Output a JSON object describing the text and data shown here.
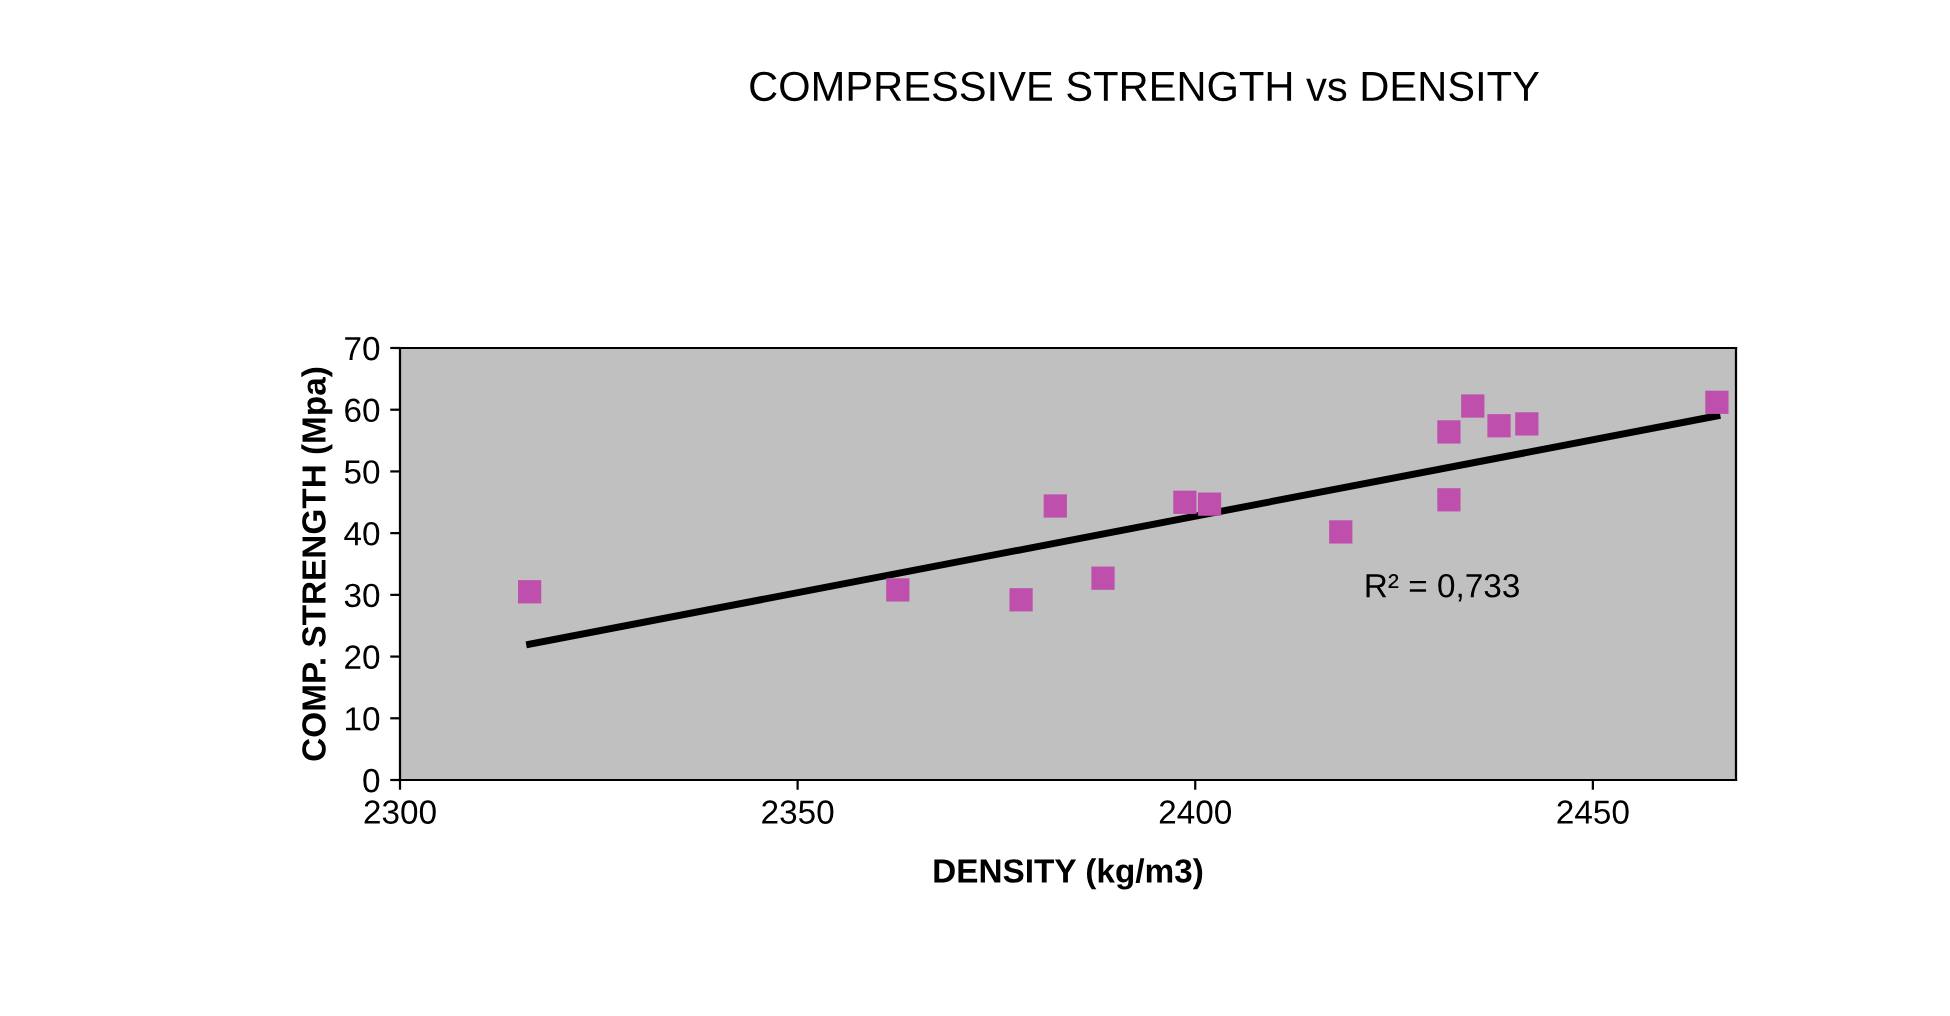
{
  "chart_data": {
    "type": "scatter",
    "title": "COMPRESSIVE STRENGTH vs DENSITY",
    "xlabel": "DENSITY (kg/m3)",
    "ylabel": "COMP. STRENGTH (Mpa)",
    "series": [
      {
        "color": "#bf4fac",
        "marker": "square",
        "x": [
          2316.3,
          2362.6,
          2378.1,
          2382.4,
          2388.4,
          2398.7,
          2401.8,
          2418.3,
          2431.9,
          2431.9,
          2434.9,
          2438.2,
          2441.7,
          2465.6
        ],
        "values": [
          30.5,
          30.8,
          29.2,
          44.4,
          32.7,
          45.0,
          44.7,
          40.2,
          56.4,
          45.4,
          60.6,
          57.4,
          57.7,
          61.2
        ]
      },
      {
        "type": "line",
        "color": "#000000",
        "x": [
          2316.3,
          2465.6
        ],
        "values": [
          22.0,
          59.0
        ]
      }
    ],
    "annotations": [
      "R² = 0,733"
    ],
    "xlim": [
      2300,
      2468
    ],
    "xticks": [
      2300,
      2350,
      2400,
      2450
    ],
    "ylim": [
      0,
      70
    ],
    "yticks": [
      0,
      10,
      20,
      30,
      40,
      50,
      60,
      70
    ],
    "grid": false,
    "legend": false
  }
}
